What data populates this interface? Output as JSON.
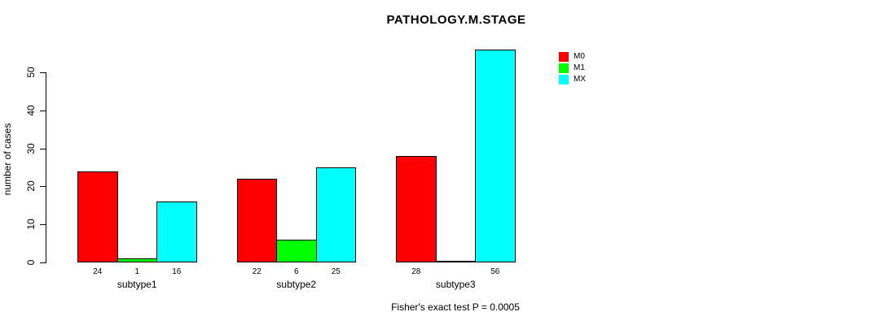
{
  "chart_data": {
    "type": "bar",
    "title": "PATHOLOGY.M.STAGE",
    "ylabel": "number of cases",
    "xlabel": "",
    "categories": [
      "subtype1",
      "subtype2",
      "subtype3"
    ],
    "series": [
      {
        "name": "M0",
        "color": "#ff0000",
        "values": [
          24,
          22,
          28
        ]
      },
      {
        "name": "M1",
        "color": "#00ff00",
        "values": [
          1,
          6,
          0
        ]
      },
      {
        "name": "MX",
        "color": "#00ffff",
        "values": [
          16,
          25,
          56
        ]
      }
    ],
    "bar_value_labels_shown": [
      "24",
      "1",
      "16",
      "22",
      "6",
      "25",
      "28",
      "56"
    ],
    "yticks": [
      0,
      10,
      20,
      30,
      40,
      50
    ],
    "ylim": [
      0,
      56
    ],
    "grid": false,
    "legend_position": "top-right",
    "legend_entries": [
      "M0",
      "M1",
      "MX"
    ],
    "annotation": "Fisher's exact test P = 0.0005",
    "background_color": "#ffffff",
    "axis_color": "#000000"
  }
}
